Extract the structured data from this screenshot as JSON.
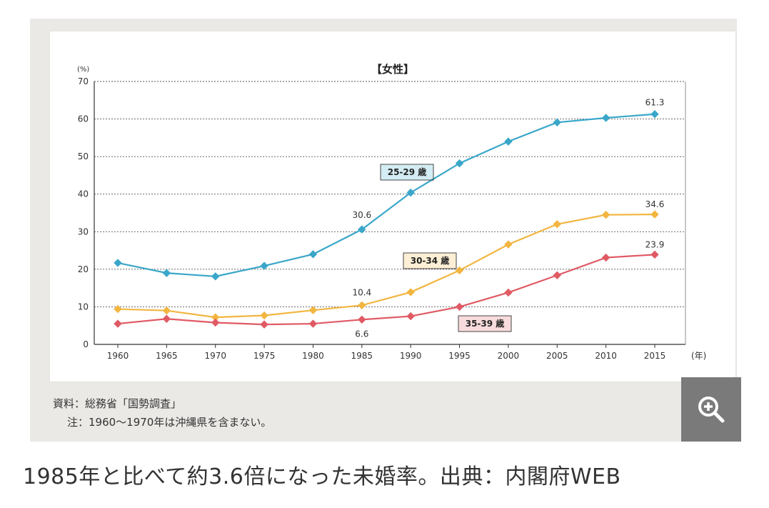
{
  "caption": "1985年と比べて約3.6倍になった未婚率。出典：内閣府WEB",
  "notes": {
    "source": "資料：総務省「国勢調査」",
    "note": "注：1960〜1970年は沖縄県を含まない。"
  },
  "zoom": {
    "icon": "zoom-in-icon",
    "color": "#7a7a7a"
  },
  "chart_data": {
    "type": "line",
    "title": "【女性】",
    "ylabel": "(%)",
    "xlabel": "(年)",
    "ylim": [
      0,
      70
    ],
    "yticks": [
      0,
      10,
      20,
      30,
      40,
      50,
      60,
      70
    ],
    "grid": true,
    "x": [
      "1960",
      "1965",
      "1970",
      "1975",
      "1980",
      "1985",
      "1990",
      "1995",
      "2000",
      "2005",
      "2010",
      "2015"
    ],
    "series": [
      {
        "name": "25-29 歳",
        "color": "#3aa7c9",
        "values": [
          21.7,
          19.0,
          18.1,
          20.9,
          24.0,
          30.6,
          40.4,
          48.2,
          54.0,
          59.1,
          60.3,
          61.3
        ],
        "labelled": [
          {
            "index": 5,
            "text": "30.6"
          },
          {
            "index": 11,
            "text": "61.3"
          }
        ]
      },
      {
        "name": "30-34 歳",
        "color": "#f2b640",
        "values": [
          9.4,
          9.0,
          7.2,
          7.7,
          9.1,
          10.4,
          13.9,
          19.7,
          26.6,
          32.0,
          34.5,
          34.6
        ],
        "labelled": [
          {
            "index": 5,
            "text": "10.4"
          },
          {
            "index": 11,
            "text": "34.6"
          }
        ]
      },
      {
        "name": "35-39 歳",
        "color": "#e05a64",
        "values": [
          5.5,
          6.8,
          5.8,
          5.3,
          5.5,
          6.6,
          7.5,
          10.0,
          13.8,
          18.4,
          23.1,
          23.9
        ],
        "labelled": [
          {
            "index": 5,
            "text": "6.6"
          },
          {
            "index": 11,
            "text": "23.9"
          }
        ]
      }
    ]
  }
}
